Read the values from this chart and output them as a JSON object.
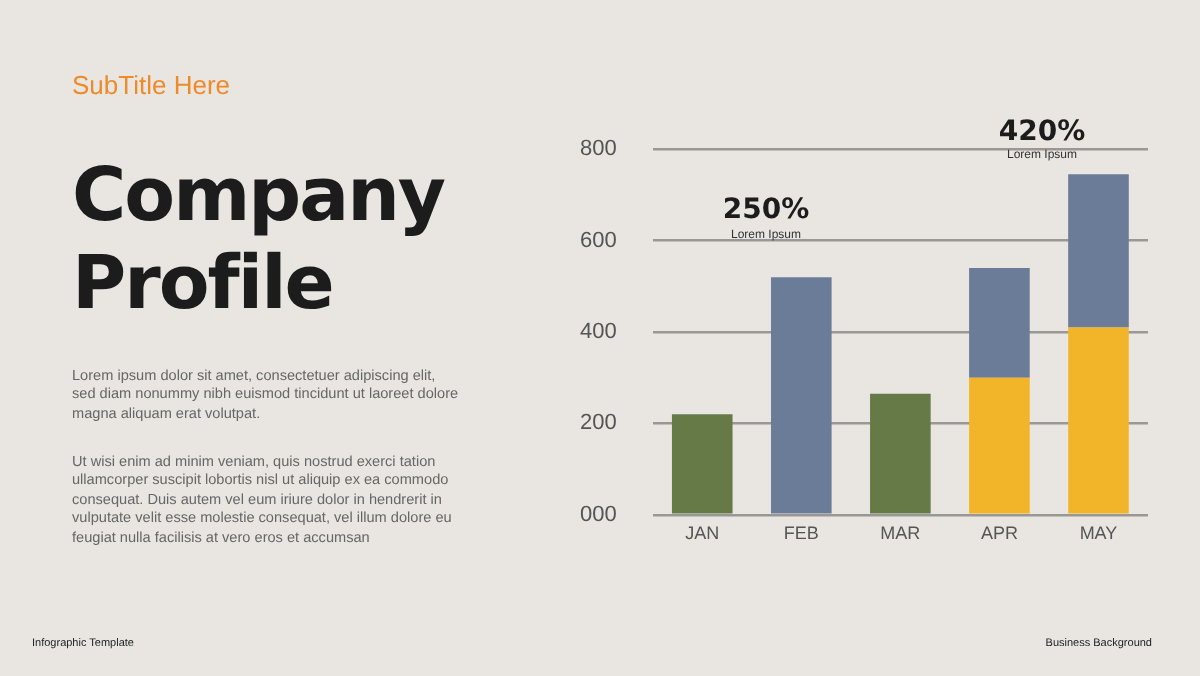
{
  "chart_data": {
    "type": "bar",
    "title": "Company Profile",
    "subtitle": "SubTitle Here",
    "categories": [
      "JAN",
      "FEB",
      "MAR",
      "APR",
      "MAY"
    ],
    "stacked": true,
    "series": [
      {
        "color": "#f2b52a",
        "values": [
          null,
          null,
          null,
          300,
          410
        ]
      },
      {
        "color": "#667a48",
        "values": [
          220,
          null,
          265,
          null,
          null
        ]
      },
      {
        "color": "#6b7c98",
        "values": [
          null,
          520,
          null,
          240,
          335
        ]
      }
    ],
    "ylim": [
      0,
      800
    ],
    "yticks": [
      {
        "value": 0,
        "label": "000"
      },
      200,
      400,
      600,
      800
    ],
    "grid": "y",
    "legend": false,
    "annotations": [
      "250%",
      "Lorem Ipsum",
      "420%",
      "Lorem Ipsum",
      "Lorem ipsum dolor sit amet, consectetuer adipiscing elit, sed diam nonummy nibh  euismod tincidunt ut laoreet dolore magna aliquam erat volutpat.",
      "Ut wisi enim ad minim veniam, quis nostrud exerci tation ullamcorper suscipit lobortis nisl ut aliquip ex ea commodo consequat. Duis autem vel eum iriure dolor in hendrerit in vulputate velit esse molestie consequat, vel illum dolore eu feugiat nulla facilisis at vero eros et accumsan",
      "Infographic Template",
      "Business Background"
    ]
  }
}
